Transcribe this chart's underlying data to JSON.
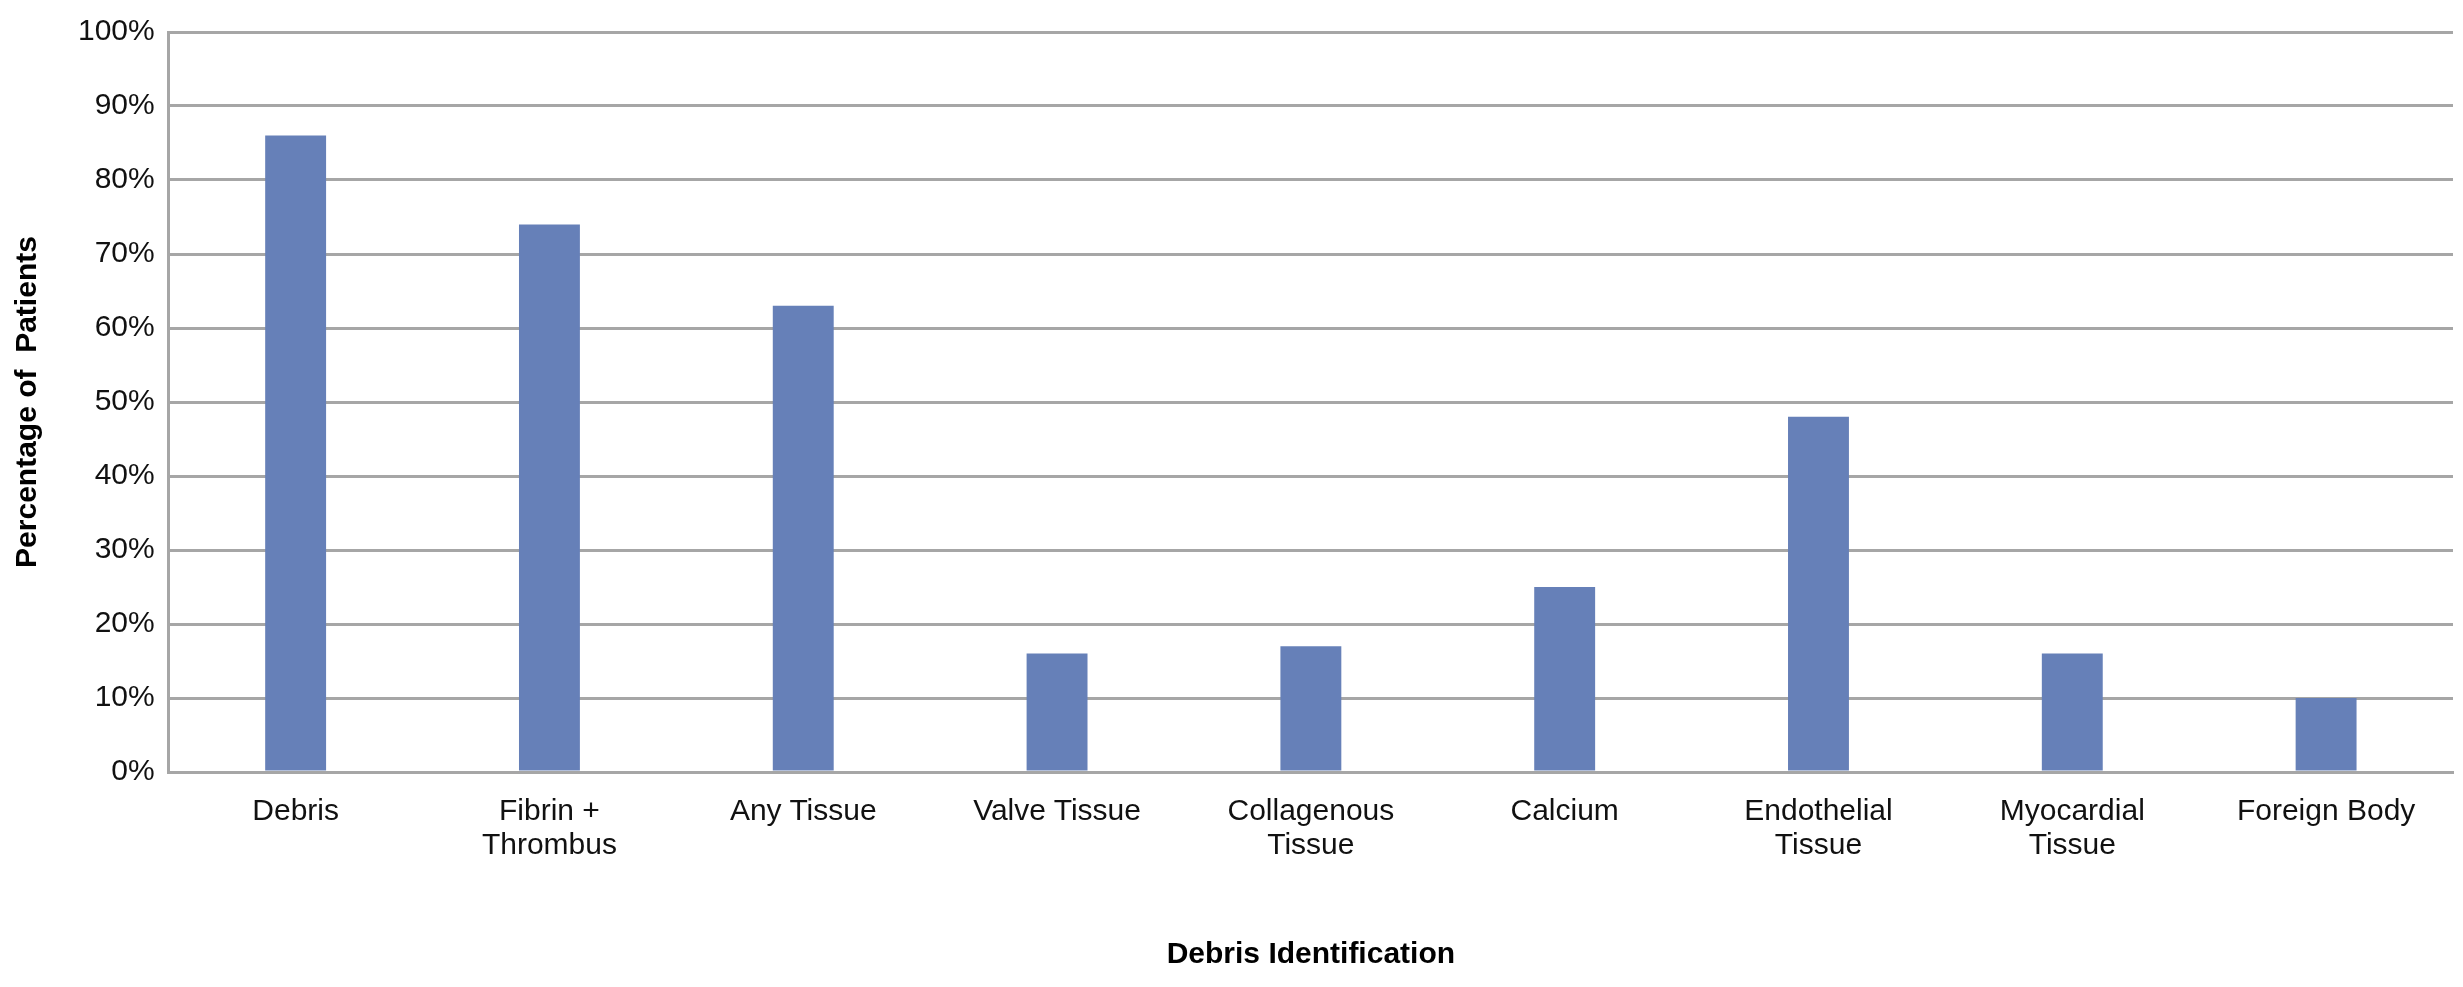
{
  "chart_data": {
    "type": "bar",
    "categories": [
      "Debris",
      "Fibrin + Thrombus",
      "Any Tissue",
      "Valve Tissue",
      "Collagenous Tissue",
      "Calcium",
      "Endothelial Tissue",
      "Myocardial Tissue",
      "Foreign Body"
    ],
    "values": [
      86,
      74,
      63,
      16,
      17,
      25,
      48,
      16,
      10
    ],
    "color": "#6680b8",
    "xlabel": "Debris Identification",
    "ylabel": "Percentage of  Patients",
    "ylim": [
      0,
      100
    ],
    "yticks": [
      {
        "value": 0,
        "label": "0%"
      },
      {
        "value": 10,
        "label": "10%"
      },
      {
        "value": 20,
        "label": "20%"
      },
      {
        "value": 30,
        "label": "30%"
      },
      {
        "value": 40,
        "label": "40%"
      },
      {
        "value": 50,
        "label": "50%"
      },
      {
        "value": 60,
        "label": "60%"
      },
      {
        "value": 70,
        "label": "70%"
      },
      {
        "value": 80,
        "label": "80%"
      },
      {
        "value": 90,
        "label": "90%"
      },
      {
        "value": 100,
        "label": "100%"
      }
    ],
    "grid": "y",
    "legend": false
  }
}
